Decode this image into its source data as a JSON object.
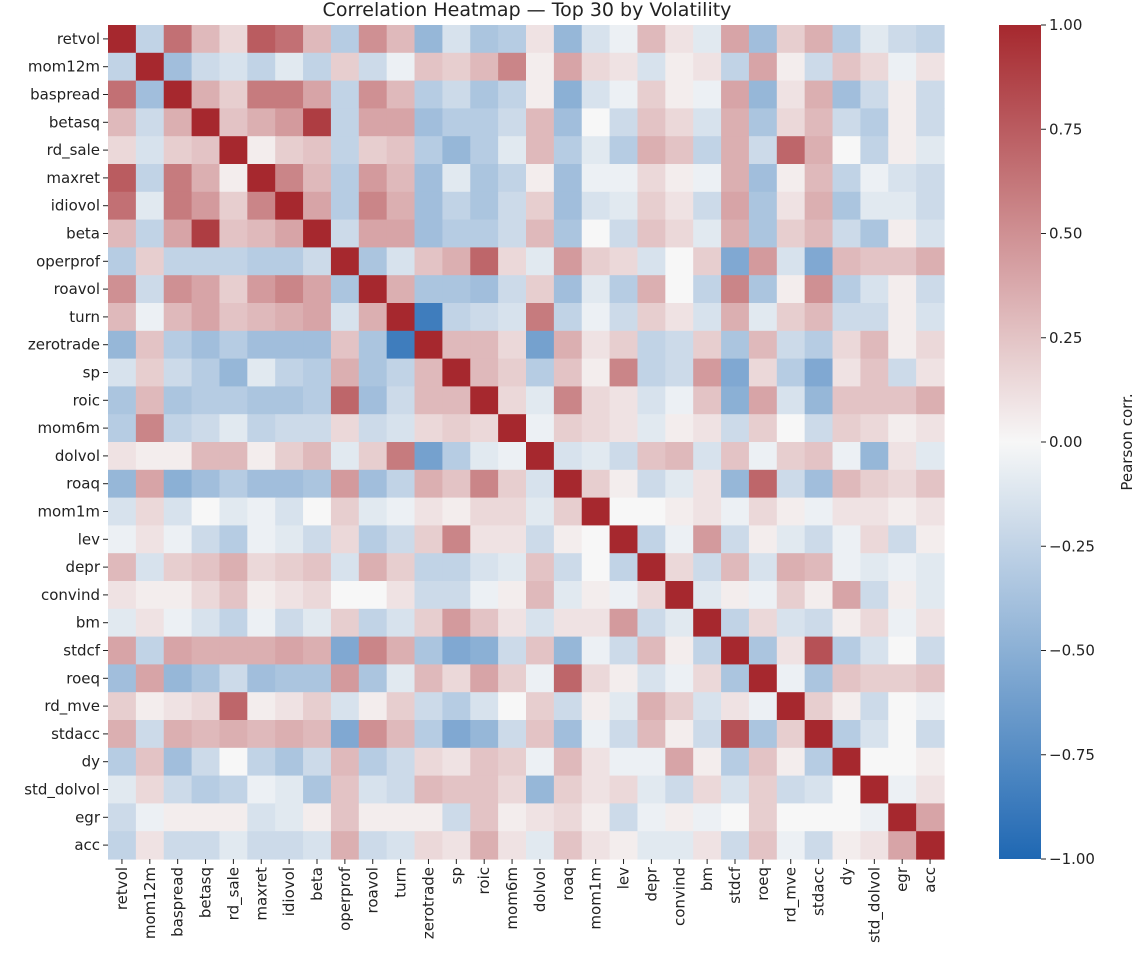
{
  "chart_data": {
    "type": "heatmap",
    "title": "Correlation Heatmap — Top 30 by Volatility",
    "variables": [
      "retvol",
      "mom12m",
      "baspread",
      "betasq",
      "rd_sale",
      "maxret",
      "idiovol",
      "beta",
      "operprof",
      "roavol",
      "turn",
      "zerotrade",
      "sp",
      "roic",
      "mom6m",
      "dolvol",
      "roaq",
      "mom1m",
      "lev",
      "depr",
      "convind",
      "bm",
      "stdcf",
      "roeq",
      "rd_mve",
      "stdacc",
      "dy",
      "std_dolvol",
      "egr",
      "acc"
    ],
    "matrix": [
      [
        1.0,
        -0.25,
        0.65,
        0.3,
        0.15,
        0.75,
        0.65,
        0.3,
        -0.3,
        0.5,
        0.3,
        -0.45,
        -0.15,
        -0.35,
        -0.3,
        0.1,
        -0.45,
        -0.15,
        -0.05,
        0.3,
        0.1,
        -0.1,
        0.4,
        -0.4,
        0.2,
        0.35,
        -0.3,
        -0.1,
        -0.2,
        -0.25
      ],
      [
        -0.25,
        1.0,
        -0.4,
        -0.2,
        -0.15,
        -0.25,
        -0.1,
        -0.25,
        0.2,
        -0.2,
        -0.05,
        0.25,
        0.2,
        0.3,
        0.55,
        0.05,
        0.4,
        0.15,
        0.1,
        -0.15,
        0.05,
        0.1,
        -0.25,
        0.4,
        0.05,
        -0.2,
        0.25,
        0.15,
        -0.05,
        0.1
      ],
      [
        0.65,
        -0.4,
        1.0,
        0.35,
        0.2,
        0.6,
        0.6,
        0.4,
        -0.25,
        0.5,
        0.3,
        -0.3,
        -0.2,
        -0.35,
        -0.25,
        0.05,
        -0.5,
        -0.15,
        -0.05,
        0.2,
        0.05,
        -0.05,
        0.4,
        -0.45,
        0.1,
        0.35,
        -0.4,
        -0.2,
        0.05,
        -0.2
      ],
      [
        0.3,
        -0.2,
        0.35,
        1.0,
        0.25,
        0.35,
        0.45,
        0.9,
        -0.25,
        0.4,
        0.4,
        -0.4,
        -0.3,
        -0.3,
        -0.2,
        0.3,
        -0.4,
        0.0,
        -0.2,
        0.25,
        0.15,
        -0.15,
        0.35,
        -0.35,
        0.15,
        0.3,
        -0.2,
        -0.3,
        0.05,
        -0.2
      ],
      [
        0.15,
        -0.15,
        0.2,
        0.25,
        1.0,
        0.05,
        0.2,
        0.25,
        -0.25,
        0.2,
        0.25,
        -0.3,
        -0.45,
        -0.3,
        -0.1,
        0.3,
        -0.3,
        -0.1,
        -0.3,
        0.35,
        0.25,
        -0.25,
        0.35,
        -0.2,
        0.7,
        0.35,
        0.0,
        -0.25,
        0.05,
        -0.1
      ],
      [
        0.75,
        -0.25,
        0.6,
        0.35,
        0.05,
        1.0,
        0.55,
        0.3,
        -0.3,
        0.45,
        0.3,
        -0.4,
        -0.1,
        -0.35,
        -0.25,
        0.05,
        -0.4,
        -0.05,
        -0.05,
        0.15,
        0.05,
        -0.05,
        0.35,
        -0.4,
        0.05,
        0.3,
        -0.25,
        -0.05,
        -0.15,
        -0.2
      ],
      [
        0.65,
        -0.1,
        0.6,
        0.45,
        0.2,
        0.55,
        1.0,
        0.4,
        -0.3,
        0.55,
        0.35,
        -0.4,
        -0.25,
        -0.35,
        -0.2,
        0.2,
        -0.4,
        -0.15,
        -0.1,
        0.2,
        0.1,
        -0.2,
        0.4,
        -0.35,
        0.1,
        0.35,
        -0.35,
        -0.1,
        -0.1,
        -0.2
      ],
      [
        0.3,
        -0.25,
        0.4,
        0.9,
        0.25,
        0.3,
        0.4,
        1.0,
        -0.2,
        0.4,
        0.4,
        -0.4,
        -0.3,
        -0.3,
        -0.2,
        0.3,
        -0.35,
        0.0,
        -0.2,
        0.25,
        0.15,
        -0.1,
        0.35,
        -0.35,
        0.2,
        0.3,
        -0.2,
        -0.35,
        0.05,
        -0.15
      ],
      [
        -0.3,
        0.2,
        -0.25,
        -0.25,
        -0.25,
        -0.3,
        -0.3,
        -0.2,
        1.0,
        -0.35,
        -0.15,
        0.25,
        0.35,
        0.7,
        0.15,
        -0.1,
        0.45,
        0.2,
        0.15,
        -0.15,
        0.0,
        0.2,
        -0.55,
        0.45,
        -0.15,
        -0.55,
        0.3,
        0.25,
        0.25,
        0.35
      ],
      [
        0.5,
        -0.2,
        0.5,
        0.4,
        0.2,
        0.45,
        0.55,
        0.4,
        -0.35,
        1.0,
        0.35,
        -0.35,
        -0.35,
        -0.4,
        -0.2,
        0.2,
        -0.4,
        -0.1,
        -0.3,
        0.35,
        0.0,
        -0.25,
        0.55,
        -0.35,
        0.05,
        0.5,
        -0.3,
        -0.15,
        0.05,
        -0.2
      ],
      [
        0.3,
        -0.05,
        0.3,
        0.4,
        0.25,
        0.3,
        0.35,
        0.4,
        -0.15,
        0.35,
        1.0,
        -0.85,
        -0.25,
        -0.2,
        -0.15,
        0.6,
        -0.25,
        -0.05,
        -0.2,
        0.2,
        0.1,
        -0.15,
        0.35,
        -0.1,
        0.2,
        0.3,
        -0.2,
        -0.2,
        0.05,
        -0.15
      ],
      [
        -0.45,
        0.25,
        -0.3,
        -0.4,
        -0.3,
        -0.4,
        -0.4,
        -0.4,
        0.25,
        -0.35,
        -0.85,
        1.0,
        0.3,
        0.3,
        0.15,
        -0.6,
        0.35,
        0.1,
        0.2,
        -0.25,
        -0.2,
        0.2,
        -0.35,
        0.3,
        -0.2,
        -0.3,
        0.15,
        0.3,
        0.05,
        0.15
      ],
      [
        -0.15,
        0.2,
        -0.2,
        -0.3,
        -0.45,
        -0.1,
        -0.25,
        -0.3,
        0.35,
        -0.35,
        -0.25,
        0.3,
        1.0,
        0.3,
        0.2,
        -0.3,
        0.25,
        0.05,
        0.55,
        -0.25,
        -0.2,
        0.45,
        -0.55,
        0.15,
        -0.3,
        -0.55,
        0.1,
        0.25,
        -0.2,
        0.1
      ],
      [
        -0.35,
        0.3,
        -0.35,
        -0.3,
        -0.3,
        -0.35,
        -0.35,
        -0.3,
        0.7,
        -0.4,
        -0.2,
        0.3,
        0.3,
        1.0,
        0.15,
        -0.1,
        0.55,
        0.15,
        0.1,
        -0.15,
        -0.05,
        0.25,
        -0.5,
        0.4,
        -0.15,
        -0.45,
        0.25,
        0.25,
        0.25,
        0.35
      ],
      [
        -0.3,
        0.55,
        -0.25,
        -0.2,
        -0.1,
        -0.25,
        -0.2,
        -0.2,
        0.15,
        -0.2,
        -0.15,
        0.15,
        0.2,
        0.15,
        1.0,
        -0.05,
        0.2,
        0.15,
        0.1,
        -0.1,
        0.05,
        0.1,
        -0.2,
        0.2,
        0.0,
        -0.2,
        0.2,
        0.15,
        0.05,
        0.1
      ],
      [
        0.1,
        0.05,
        0.05,
        0.3,
        0.3,
        0.05,
        0.2,
        0.3,
        -0.1,
        0.2,
        0.6,
        -0.6,
        -0.3,
        -0.1,
        -0.05,
        1.0,
        -0.15,
        -0.1,
        -0.2,
        0.25,
        0.3,
        -0.15,
        0.25,
        -0.05,
        0.2,
        0.25,
        -0.05,
        -0.45,
        0.1,
        -0.1
      ],
      [
        -0.45,
        0.4,
        -0.5,
        -0.4,
        -0.3,
        -0.4,
        -0.4,
        -0.35,
        0.45,
        -0.4,
        -0.25,
        0.35,
        0.25,
        0.55,
        0.2,
        -0.15,
        1.0,
        0.2,
        0.05,
        -0.2,
        -0.1,
        0.1,
        -0.45,
        0.7,
        -0.2,
        -0.4,
        0.3,
        0.2,
        0.15,
        0.25
      ],
      [
        -0.15,
        0.15,
        -0.15,
        0.0,
        -0.1,
        -0.05,
        -0.15,
        0.0,
        0.2,
        -0.1,
        -0.05,
        0.1,
        0.05,
        0.15,
        0.15,
        -0.1,
        0.2,
        1.0,
        0.0,
        0.0,
        0.05,
        0.1,
        -0.05,
        0.15,
        0.05,
        -0.05,
        0.1,
        0.1,
        0.05,
        0.1
      ],
      [
        -0.05,
        0.1,
        -0.05,
        -0.2,
        -0.3,
        -0.05,
        -0.1,
        -0.2,
        0.15,
        -0.3,
        -0.2,
        0.2,
        0.55,
        0.1,
        0.1,
        -0.2,
        0.05,
        0.0,
        1.0,
        -0.25,
        -0.05,
        0.45,
        -0.2,
        0.05,
        -0.1,
        -0.2,
        -0.05,
        0.15,
        -0.2,
        0.05
      ],
      [
        0.3,
        -0.15,
        0.2,
        0.25,
        0.35,
        0.15,
        0.2,
        0.25,
        -0.15,
        0.35,
        0.2,
        -0.25,
        -0.25,
        -0.15,
        -0.1,
        0.25,
        -0.2,
        0.0,
        -0.25,
        1.0,
        0.15,
        -0.2,
        0.3,
        -0.15,
        0.35,
        0.3,
        -0.05,
        -0.1,
        -0.05,
        -0.1
      ],
      [
        0.1,
        0.05,
        0.05,
        0.15,
        0.25,
        0.05,
        0.1,
        0.15,
        0.0,
        0.0,
        0.1,
        -0.2,
        -0.2,
        -0.05,
        0.05,
        0.3,
        -0.1,
        0.05,
        -0.05,
        0.15,
        1.0,
        -0.1,
        0.05,
        -0.05,
        0.2,
        0.05,
        0.4,
        -0.2,
        0.05,
        -0.1
      ],
      [
        -0.1,
        0.1,
        -0.05,
        -0.15,
        -0.25,
        -0.05,
        -0.2,
        -0.1,
        0.2,
        -0.25,
        -0.15,
        0.2,
        0.45,
        0.25,
        0.1,
        -0.15,
        0.1,
        0.1,
        0.45,
        -0.2,
        -0.1,
        1.0,
        -0.25,
        0.15,
        -0.15,
        -0.2,
        0.05,
        0.15,
        -0.05,
        0.1
      ],
      [
        0.4,
        -0.25,
        0.4,
        0.35,
        0.35,
        0.35,
        0.4,
        0.35,
        -0.55,
        0.55,
        0.35,
        -0.35,
        -0.55,
        -0.5,
        -0.2,
        0.25,
        -0.45,
        -0.05,
        -0.2,
        0.3,
        0.05,
        -0.25,
        1.0,
        -0.35,
        0.1,
        0.8,
        -0.3,
        -0.15,
        0.0,
        -0.2
      ],
      [
        -0.4,
        0.4,
        -0.45,
        -0.35,
        -0.2,
        -0.4,
        -0.35,
        -0.35,
        0.45,
        -0.35,
        -0.1,
        0.3,
        0.15,
        0.4,
        0.2,
        -0.05,
        0.7,
        0.15,
        0.05,
        -0.15,
        -0.05,
        0.15,
        -0.35,
        1.0,
        -0.05,
        -0.35,
        0.25,
        0.2,
        0.2,
        0.25
      ],
      [
        0.2,
        0.05,
        0.1,
        0.15,
        0.7,
        0.05,
        0.1,
        0.2,
        -0.15,
        0.05,
        0.2,
        -0.2,
        -0.3,
        -0.15,
        0.0,
        0.2,
        -0.2,
        0.05,
        -0.1,
        0.35,
        0.2,
        -0.15,
        0.1,
        -0.05,
        1.0,
        0.2,
        0.05,
        -0.2,
        0.0,
        -0.05
      ],
      [
        0.35,
        -0.2,
        0.35,
        0.3,
        0.35,
        0.3,
        0.35,
        0.3,
        -0.55,
        0.5,
        0.3,
        -0.3,
        -0.55,
        -0.45,
        -0.2,
        0.25,
        -0.4,
        -0.05,
        -0.2,
        0.3,
        0.05,
        -0.2,
        0.8,
        -0.35,
        0.2,
        1.0,
        -0.3,
        -0.15,
        0.0,
        -0.2
      ],
      [
        -0.3,
        0.25,
        -0.4,
        -0.2,
        0.0,
        -0.25,
        -0.35,
        -0.2,
        0.3,
        -0.3,
        -0.2,
        0.15,
        0.1,
        0.25,
        0.2,
        -0.05,
        0.3,
        0.1,
        -0.05,
        -0.05,
        0.4,
        0.05,
        -0.3,
        0.25,
        0.05,
        -0.3,
        1.0,
        0.0,
        0.0,
        0.05
      ],
      [
        -0.1,
        0.15,
        -0.2,
        -0.3,
        -0.25,
        -0.05,
        -0.1,
        -0.35,
        0.25,
        -0.15,
        -0.2,
        0.3,
        0.25,
        0.25,
        0.15,
        -0.45,
        0.2,
        0.1,
        0.15,
        -0.1,
        -0.2,
        0.15,
        -0.15,
        0.2,
        -0.2,
        -0.15,
        0.0,
        1.0,
        -0.05,
        0.1
      ],
      [
        -0.2,
        -0.05,
        0.05,
        0.05,
        0.05,
        -0.15,
        -0.1,
        0.05,
        0.25,
        0.05,
        0.05,
        0.05,
        -0.2,
        0.25,
        0.05,
        0.1,
        0.15,
        0.05,
        -0.2,
        -0.05,
        0.05,
        -0.05,
        0.0,
        0.2,
        0.0,
        0.0,
        0.0,
        -0.05,
        1.0,
        0.4
      ],
      [
        -0.25,
        0.1,
        -0.2,
        -0.2,
        -0.1,
        -0.2,
        -0.2,
        -0.15,
        0.35,
        -0.2,
        -0.15,
        0.15,
        0.1,
        0.35,
        0.1,
        -0.1,
        0.25,
        0.1,
        0.05,
        -0.1,
        -0.1,
        0.1,
        -0.2,
        0.25,
        -0.05,
        -0.2,
        0.05,
        0.1,
        0.4,
        1.0
      ]
    ],
    "vmin": -1.0,
    "vmax": 1.0,
    "colormap": "vlag",
    "colorbar": {
      "label": "Pearson corr.",
      "ticks": [
        1.0,
        0.75,
        0.5,
        0.25,
        0.0,
        -0.25,
        -0.5,
        -0.75,
        -1.0
      ],
      "tick_labels": [
        "1.00",
        "0.75",
        "0.50",
        "0.25",
        "0.00",
        "−0.25",
        "−0.50",
        "−0.75",
        "−1.00"
      ]
    },
    "colors": {
      "low": "#1f68b3",
      "mid": "#f7f7f7",
      "high": "#a6282e"
    }
  }
}
